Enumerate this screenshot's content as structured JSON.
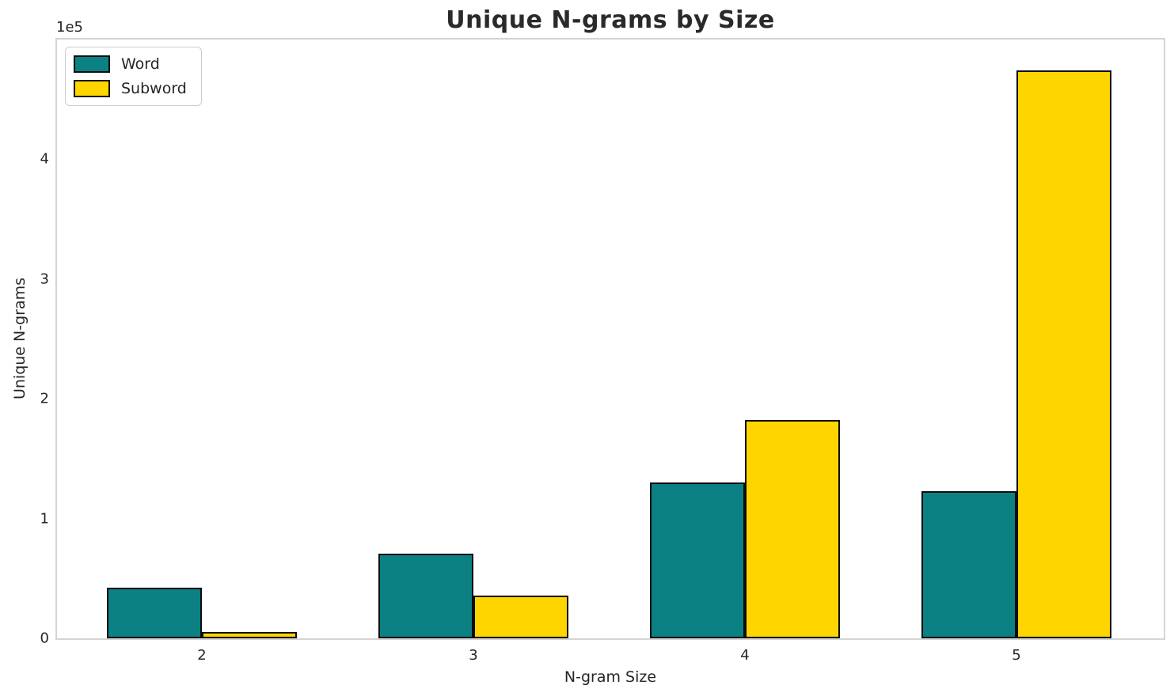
{
  "title": "Unique N-grams by Size",
  "offset_text": "1e5",
  "axes": {
    "xlabel": "N-gram Size",
    "ylabel": "Unique N-grams"
  },
  "legend": {
    "items": [
      {
        "label": "Word",
        "color": "#0b8183"
      },
      {
        "label": "Subword",
        "color": "#ffd500"
      }
    ]
  },
  "colors": {
    "word": "#0b8183",
    "subword": "#ffd500",
    "bar_edge": "#0d0d0d",
    "grid": "#e9e9e9",
    "spine": "#d4d4d4",
    "text": "#262626"
  },
  "chart_data": {
    "type": "bar",
    "title": "Unique N-grams by Size",
    "xlabel": "N-gram Size",
    "ylabel": "Unique N-grams",
    "categories": [
      2,
      3,
      4,
      5
    ],
    "series": [
      {
        "name": "Word",
        "color": "#0b8183",
        "values": [
          42000,
          71000,
          130000,
          123000
        ]
      },
      {
        "name": "Subword",
        "color": "#ffd500",
        "values": [
          5000,
          35500,
          182000,
          474000
        ]
      }
    ],
    "bar_width": 0.35,
    "xlim": [
      1.4665,
      5.5425
    ],
    "ylim": [
      0,
      500000
    ],
    "yticks": [
      0,
      100000,
      200000,
      300000,
      400000
    ],
    "ytick_labels": [
      "0",
      "1",
      "2",
      "3",
      "4"
    ],
    "xtick_labels": [
      "2",
      "3",
      "4",
      "5"
    ],
    "y_offset_label": "1e5",
    "grid": true,
    "legend_position": "upper left"
  }
}
